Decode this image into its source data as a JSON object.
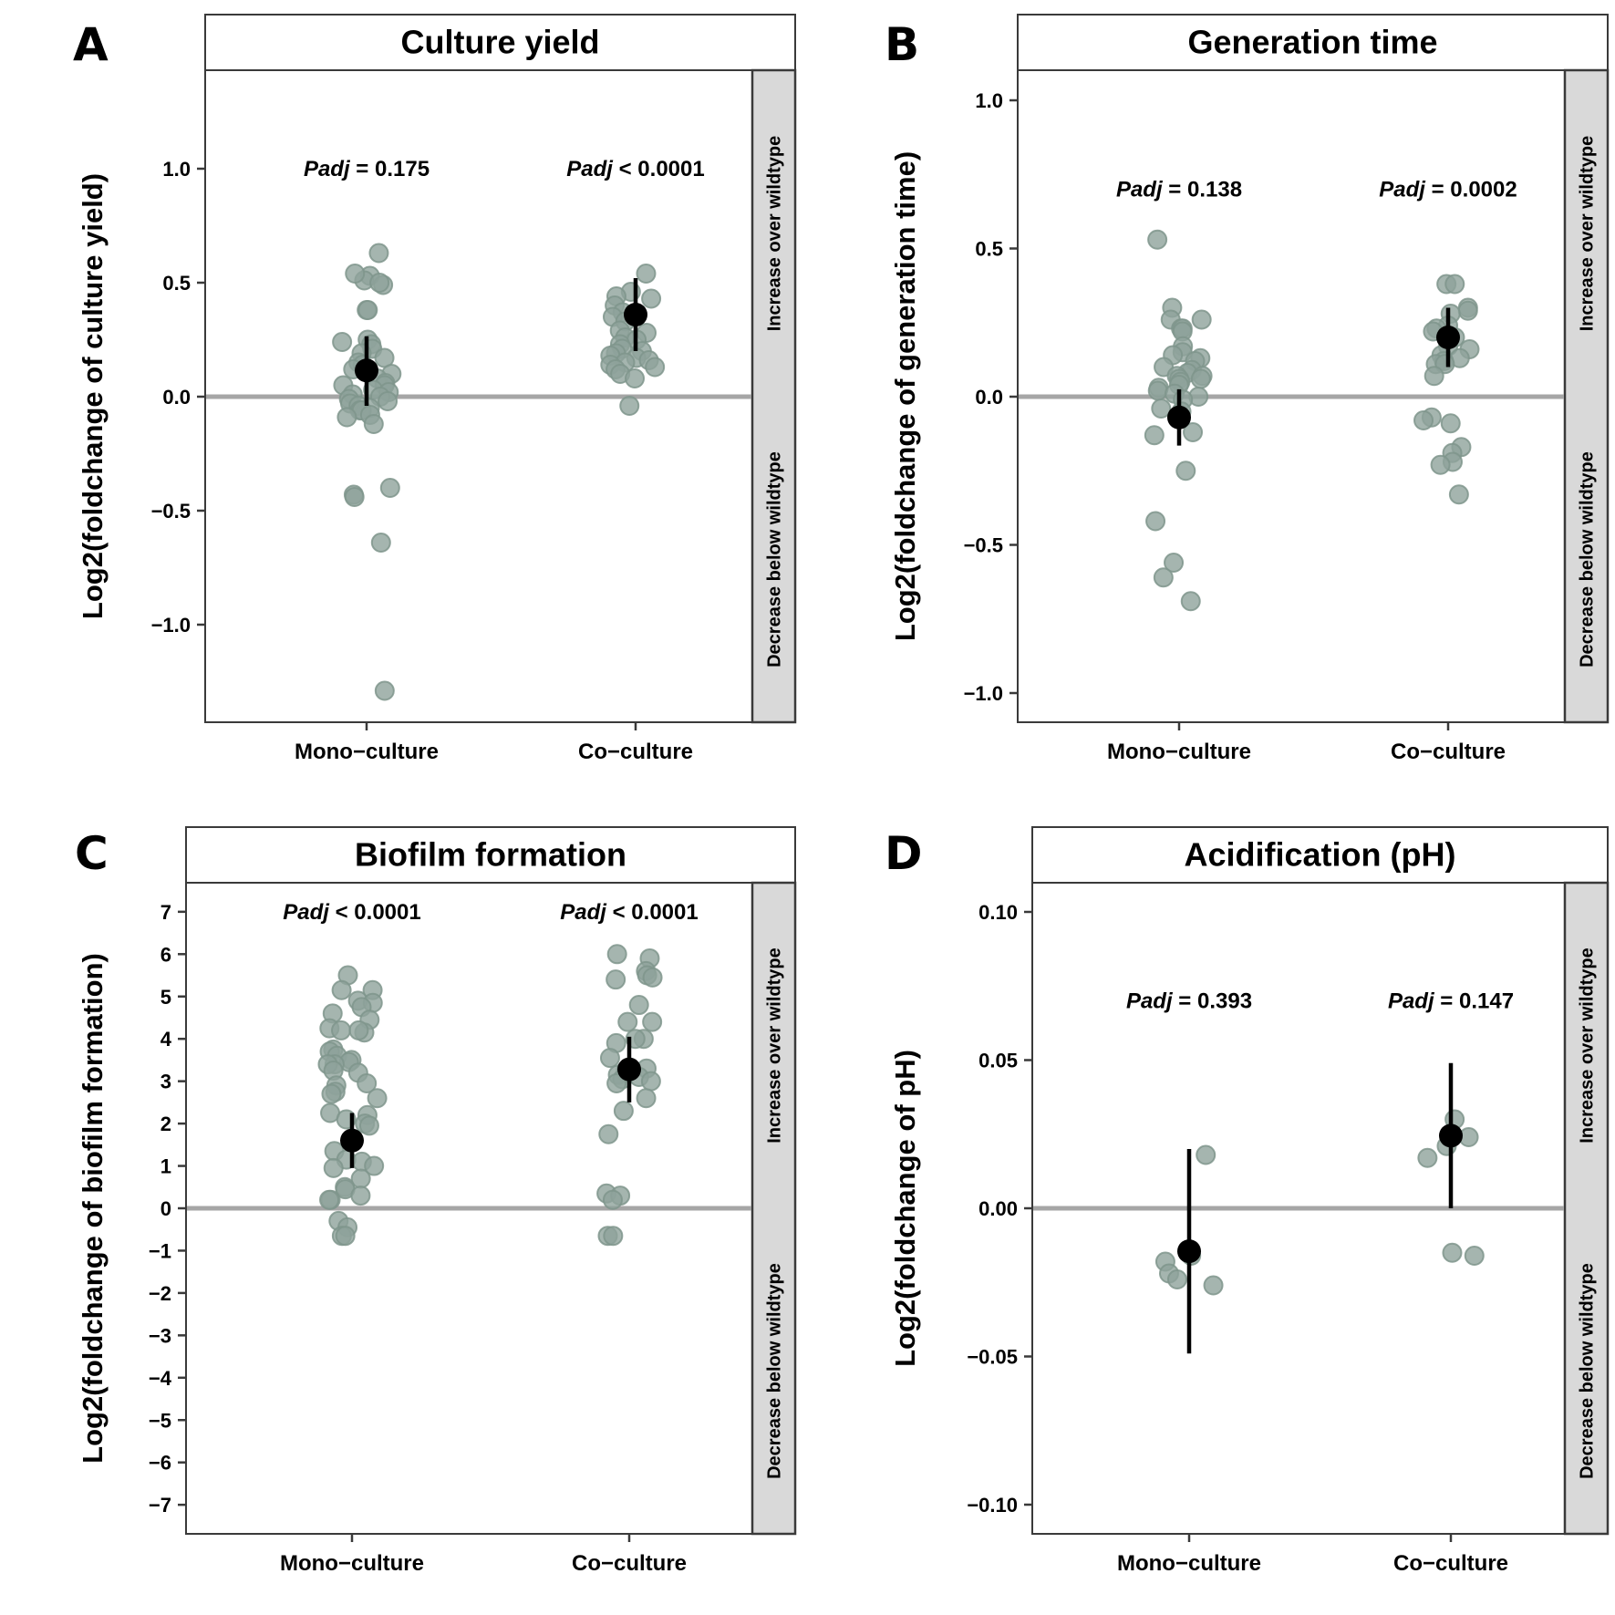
{
  "figure": {
    "side_labels": {
      "upper": "Increase over wildtype",
      "lower": "Decrease below wildtype"
    }
  },
  "chart_data": [
    {
      "type": "scatter",
      "panel": "A",
      "title": "Culture yield",
      "xlabel": "",
      "ylabel": "Log2(foldchange of culture yield)",
      "categories": [
        "Mono−culture",
        "Co−culture"
      ],
      "ylim": [
        -1.4,
        1.4
      ],
      "yticks": [
        1.0,
        0.5,
        0.0,
        -0.5,
        -1.0
      ],
      "ytick_labels": [
        "1.0",
        "0.5",
        "0.0",
        "−0.5",
        "−1.0"
      ],
      "reference_line": 0,
      "grid": false,
      "annotations": [
        {
          "category": "Mono−culture",
          "label": "Padj",
          "text": " = 0.175",
          "y": 1.0
        },
        {
          "category": "Co−culture",
          "label": "Padj",
          "text": " < 0.0001",
          "y": 1.0
        }
      ],
      "series": [
        {
          "name": "Mono−culture",
          "mean": 0.115,
          "ci": [
            -0.04,
            0.265
          ],
          "points": [
            0.63,
            0.53,
            0.51,
            0.54,
            0.49,
            0.5,
            0.38,
            0.38,
            0.25,
            0.24,
            0.23,
            0.21,
            0.19,
            0.17,
            0.15,
            0.14,
            0.12,
            0.1,
            0.08,
            0.06,
            0.05,
            0.05,
            0.03,
            0.02,
            0.01,
            0.0,
            -0.01,
            -0.02,
            -0.03,
            -0.04,
            -0.05,
            -0.06,
            -0.06,
            -0.08,
            -0.09,
            -0.12,
            -0.4,
            -0.43,
            -0.44,
            -0.64,
            -1.29
          ]
        },
        {
          "name": "Co−culture",
          "mean": 0.36,
          "ci": [
            0.2,
            0.52
          ],
          "points": [
            0.54,
            0.46,
            0.44,
            0.43,
            0.4,
            0.37,
            0.35,
            0.33,
            0.29,
            0.28,
            0.26,
            0.25,
            0.23,
            0.21,
            0.2,
            0.19,
            0.18,
            0.17,
            0.16,
            0.15,
            0.14,
            0.13,
            0.12,
            0.1,
            0.08,
            -0.04
          ]
        }
      ]
    },
    {
      "type": "scatter",
      "panel": "B",
      "title": "Generation time",
      "xlabel": "",
      "ylabel": "Log2(foldchange of generation time)",
      "categories": [
        "Mono−culture",
        "Co−culture"
      ],
      "ylim": [
        -1.1,
        1.1
      ],
      "yticks": [
        1.0,
        0.5,
        0.0,
        -0.5,
        -1.0
      ],
      "ytick_labels": [
        "1.0",
        "0.5",
        "0.0",
        "−0.5",
        "−1.0"
      ],
      "reference_line": 0,
      "grid": false,
      "annotations": [
        {
          "category": "Mono−culture",
          "label": "Padj",
          "text": " = 0.138",
          "y": 0.7
        },
        {
          "category": "Co−culture",
          "label": "Padj",
          "text": " = 0.0002",
          "y": 0.7
        }
      ],
      "series": [
        {
          "name": "Mono−culture",
          "mean": -0.07,
          "ci": [
            -0.165,
            0.025
          ],
          "points": [
            0.53,
            0.3,
            0.26,
            0.26,
            0.23,
            0.23,
            0.22,
            0.17,
            0.15,
            0.14,
            0.13,
            0.12,
            0.1,
            0.09,
            0.08,
            0.07,
            0.07,
            0.06,
            0.06,
            0.05,
            0.04,
            0.03,
            0.02,
            0.01,
            0.0,
            -0.01,
            -0.04,
            -0.05,
            -0.12,
            -0.13,
            -0.25,
            -0.42,
            -0.56,
            -0.61,
            -0.69
          ]
        },
        {
          "name": "Co−culture",
          "mean": 0.2,
          "ci": [
            0.1,
            0.3
          ],
          "points": [
            0.38,
            0.38,
            0.3,
            0.29,
            0.28,
            0.24,
            0.23,
            0.22,
            0.2,
            0.17,
            0.16,
            0.14,
            0.13,
            0.12,
            0.11,
            0.11,
            0.07,
            -0.07,
            -0.08,
            -0.09,
            -0.17,
            -0.19,
            -0.22,
            -0.23,
            -0.33
          ]
        }
      ]
    },
    {
      "type": "scatter",
      "panel": "C",
      "title": "Biofilm formation",
      "xlabel": "",
      "ylabel": "Log2(foldchange of biofilm formation)",
      "categories": [
        "Mono−culture",
        "Co−culture"
      ],
      "ylim": [
        -7.7,
        7.7
      ],
      "yticks": [
        7,
        6,
        5,
        4,
        3,
        2,
        1,
        0,
        -1,
        -2,
        -3,
        -4,
        -5,
        -6,
        -7
      ],
      "ytick_labels": [
        "7",
        "6",
        "5",
        "4",
        "3",
        "2",
        "1",
        "0",
        "−1",
        "−2",
        "−3",
        "−4",
        "−5",
        "−6",
        "−7"
      ],
      "reference_line": 0,
      "grid": false,
      "annotations": [
        {
          "category": "Mono−culture",
          "label": "Padj",
          "text": " < 0.0001",
          "y": 7.0
        },
        {
          "category": "Co−culture",
          "label": "Padj",
          "text": " < 0.0001",
          "y": 7.0
        }
      ],
      "series": [
        {
          "name": "Mono−culture",
          "mean": 1.6,
          "ci": [
            0.95,
            2.25
          ],
          "points": [
            5.5,
            5.15,
            5.15,
            4.9,
            4.85,
            4.75,
            4.6,
            4.45,
            4.25,
            4.2,
            4.15,
            4.2,
            3.75,
            3.7,
            3.6,
            3.5,
            3.45,
            3.4,
            3.4,
            3.25,
            3.2,
            2.95,
            2.9,
            2.75,
            2.7,
            2.6,
            2.25,
            2.2,
            2.1,
            2.0,
            1.95,
            1.6,
            1.35,
            1.15,
            1.1,
            1.0,
            0.95,
            0.7,
            0.5,
            0.45,
            0.3,
            0.2,
            0.2,
            -0.3,
            -0.45,
            -0.65,
            -0.65
          ]
        },
        {
          "name": "Co−culture",
          "mean": 3.28,
          "ci": [
            2.5,
            4.05
          ],
          "points": [
            6.0,
            5.9,
            5.6,
            5.5,
            5.45,
            5.4,
            4.8,
            4.4,
            4.4,
            4.0,
            4.0,
            3.9,
            3.55,
            3.3,
            3.25,
            3.2,
            3.15,
            3.1,
            3.05,
            3.0,
            2.95,
            2.6,
            2.3,
            1.75,
            0.35,
            0.3,
            0.2,
            -0.65,
            -0.65
          ]
        }
      ]
    },
    {
      "type": "scatter",
      "panel": "D",
      "title": "Acidification (pH)",
      "xlabel": "",
      "ylabel": "Log2(foldchange of pH)",
      "categories": [
        "Mono−culture",
        "Co−culture"
      ],
      "ylim": [
        -0.11,
        0.11
      ],
      "yticks": [
        0.1,
        0.05,
        0.0,
        -0.05,
        -0.1
      ],
      "ytick_labels": [
        "0.10",
        "0.05",
        "0.00",
        "−0.05",
        "−0.10"
      ],
      "reference_line": 0,
      "grid": false,
      "annotations": [
        {
          "category": "Mono−culture",
          "label": "Padj",
          "text": " = 0.393",
          "y": 0.07
        },
        {
          "category": "Co−culture",
          "label": "Padj",
          "text": " = 0.147",
          "y": 0.07
        }
      ],
      "series": [
        {
          "name": "Mono−culture",
          "mean": -0.0145,
          "ci": [
            -0.049,
            0.02
          ],
          "points": [
            0.018,
            -0.016,
            -0.018,
            -0.022,
            -0.024,
            -0.026
          ]
        },
        {
          "name": "Co−culture",
          "mean": 0.0245,
          "ci": [
            0.0,
            0.049
          ],
          "points": [
            0.03,
            0.024,
            0.021,
            0.017,
            -0.015,
            -0.016
          ]
        }
      ]
    }
  ]
}
